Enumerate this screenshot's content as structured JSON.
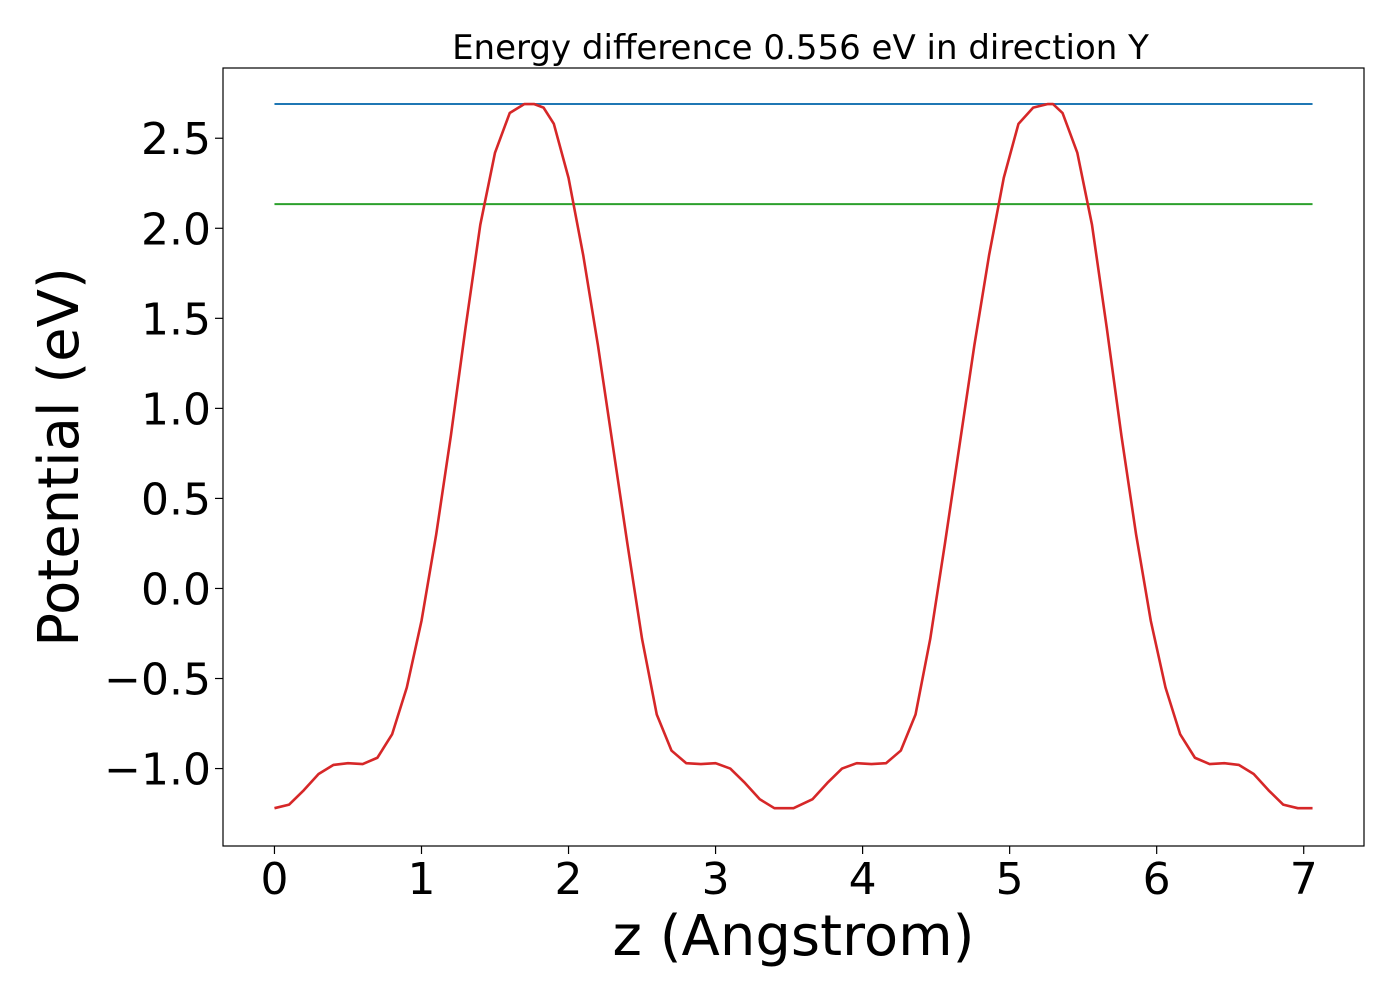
{
  "chart_data": {
    "type": "line",
    "title": "Energy difference 0.556 eV in direction Y",
    "xlabel": "z (Angstrom)",
    "ylabel": "Potential (eV)",
    "xlim": [
      -0.35,
      7.41
    ],
    "ylim": [
      -1.43,
      2.89
    ],
    "xticks": [
      0,
      1,
      2,
      3,
      4,
      5,
      6,
      7
    ],
    "xtick_labels": [
      "0",
      "1",
      "2",
      "3",
      "4",
      "5",
      "6",
      "7"
    ],
    "yticks": [
      -1.0,
      -0.5,
      0.0,
      0.5,
      1.0,
      1.5,
      2.0,
      2.5
    ],
    "ytick_labels": [
      "−1.0",
      "−0.5",
      "0.0",
      "0.5",
      "1.0",
      "1.5",
      "2.0",
      "2.5"
    ],
    "grid": false,
    "series": [
      {
        "color": "#1f77b4",
        "x": [
          0,
          7.06
        ],
        "y": [
          2.69,
          2.69
        ]
      },
      {
        "color": "#2ca02c",
        "x": [
          0,
          7.06
        ],
        "y": [
          2.134,
          2.134
        ]
      },
      {
        "color": "#d62728",
        "x": [
          0,
          0.1,
          0.2,
          0.3,
          0.4,
          0.5,
          0.6,
          0.7,
          0.8,
          0.9,
          1.0,
          1.1,
          1.2,
          1.3,
          1.4,
          1.5,
          1.6,
          1.7,
          1.765,
          1.83,
          1.9,
          2.0,
          2.1,
          2.2,
          2.3,
          2.4,
          2.5,
          2.6,
          2.7,
          2.8,
          2.9,
          3.0,
          3.1,
          3.2,
          3.3,
          3.4,
          3.53,
          3.66,
          3.76,
          3.86,
          3.96,
          4.06,
          4.16,
          4.26,
          4.36,
          4.46,
          4.56,
          4.66,
          4.76,
          4.86,
          4.96,
          5.06,
          5.16,
          5.26,
          5.295,
          5.36,
          5.46,
          5.56,
          5.66,
          5.76,
          5.86,
          5.96,
          6.06,
          6.16,
          6.26,
          6.36,
          6.46,
          6.56,
          6.66,
          6.76,
          6.86,
          6.96,
          7.06
        ],
        "y": [
          -1.22,
          -1.2,
          -1.12,
          -1.03,
          -0.98,
          -0.97,
          -0.975,
          -0.94,
          -0.81,
          -0.55,
          -0.18,
          0.3,
          0.85,
          1.45,
          2.02,
          2.42,
          2.64,
          2.69,
          2.69,
          2.67,
          2.58,
          2.28,
          1.85,
          1.35,
          0.8,
          0.25,
          -0.28,
          -0.7,
          -0.9,
          -0.97,
          -0.975,
          -0.97,
          -1.0,
          -1.08,
          -1.17,
          -1.22,
          -1.22,
          -1.17,
          -1.08,
          -1.0,
          -0.97,
          -0.975,
          -0.97,
          -0.9,
          -0.7,
          -0.28,
          0.25,
          0.8,
          1.35,
          1.85,
          2.28,
          2.58,
          2.67,
          2.69,
          2.69,
          2.64,
          2.42,
          2.02,
          1.45,
          0.85,
          0.3,
          -0.18,
          -0.55,
          -0.81,
          -0.94,
          -0.975,
          -0.97,
          -0.98,
          -1.03,
          -1.12,
          -1.2,
          -1.22,
          -1.22
        ]
      }
    ]
  }
}
